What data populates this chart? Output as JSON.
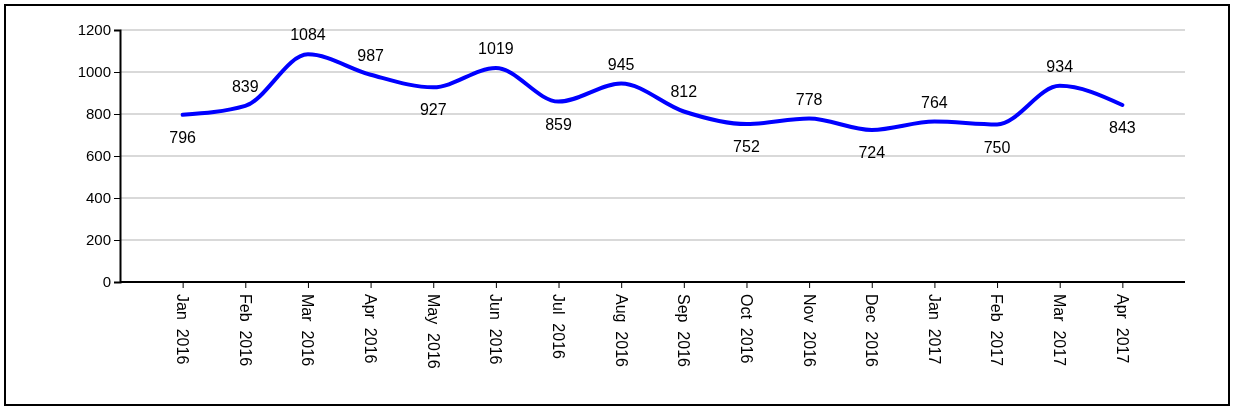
{
  "chart_data": {
    "type": "line",
    "categories": [
      "Jan 2016",
      "Feb 2016",
      "Mar 2016",
      "Apr 2016",
      "May 2016",
      "Jun 2016",
      "Jul 2016",
      "Aug 2016",
      "Sep 2016",
      "Oct 2016",
      "Nov 2016",
      "Dec 2016",
      "Jan 2017",
      "Feb 2017",
      "Mar 2017",
      "Apr 2017"
    ],
    "series": [
      {
        "color": "#0000ff",
        "values": [
          796,
          839,
          1084,
          987,
          927,
          1019,
          859,
          945,
          812,
          752,
          778,
          724,
          764,
          750,
          934,
          843
        ]
      }
    ],
    "ylim": [
      0,
      1200
    ],
    "yticks": [
      0,
      200,
      400,
      600,
      800,
      1000,
      1200
    ],
    "grid": "y",
    "data_labels": true,
    "marker": "none",
    "line_style": "solid"
  }
}
